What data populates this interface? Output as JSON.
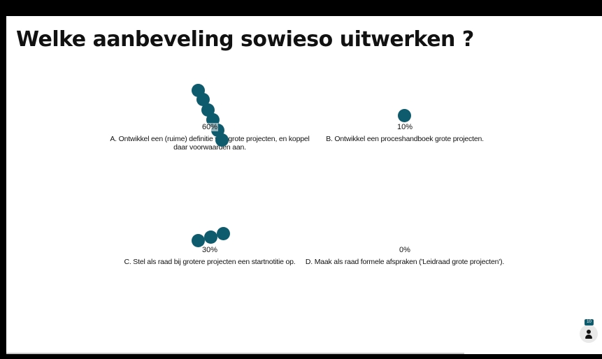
{
  "slide": {
    "title": "Welke aanbeveling sowieso uitwerken ?",
    "accent_color": "#0e5b6d"
  },
  "options": [
    {
      "percent": "60%",
      "value": 60,
      "label": "A. Ontwikkel een (ruime) definitie van grote projecten, en koppel daar voorwaarden aan."
    },
    {
      "percent": "10%",
      "value": 10,
      "label": "B. Ontwikkel een proceshandboek grote projecten."
    },
    {
      "percent": "30%",
      "value": 30,
      "label": "C. Stel als raad bij grotere projecten een startnotitie op."
    },
    {
      "percent": "0%",
      "value": 0,
      "label": "D. Maak als raad formele afspraken ('Leidraad grote projecten')."
    }
  ],
  "participants": {
    "count": "10",
    "icon": "person-icon"
  }
}
